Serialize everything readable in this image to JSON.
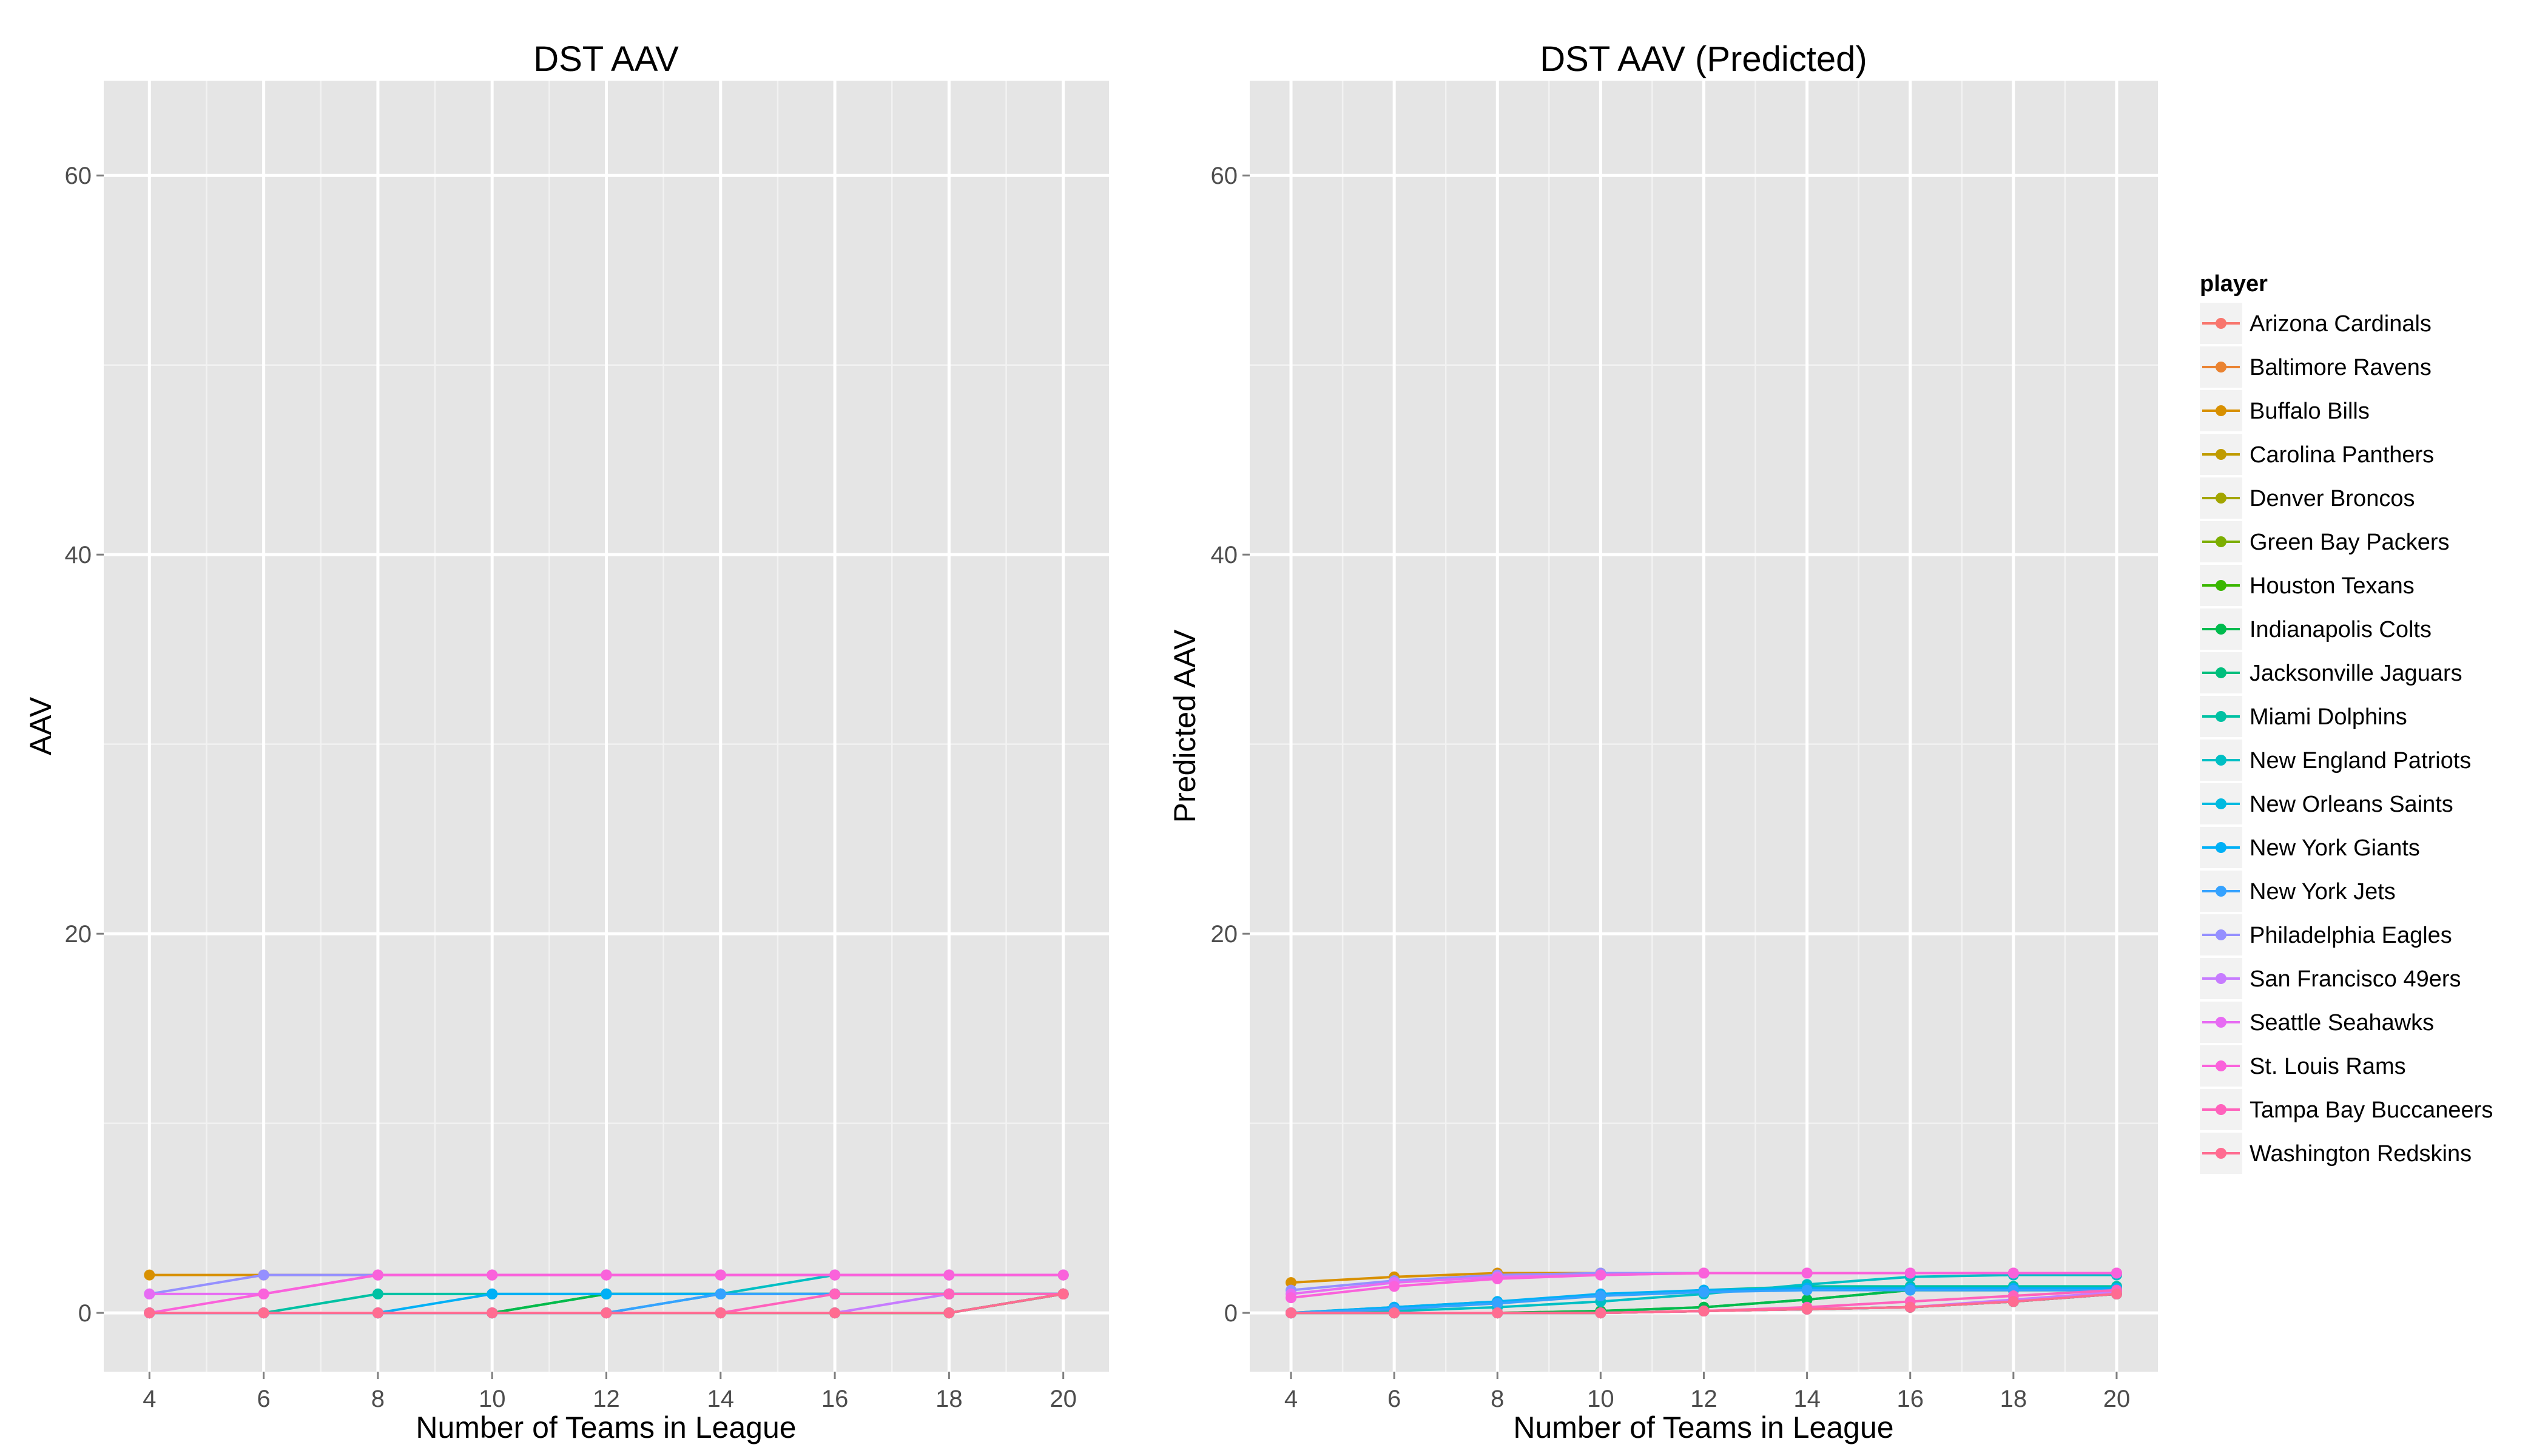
{
  "chart_data": [
    {
      "type": "line",
      "title": "DST AAV",
      "xlabel": "Number of Teams in League",
      "ylabel": "AAV",
      "xlim": [
        3.2,
        20.8
      ],
      "ylim": [
        -3.1,
        65
      ],
      "x_ticks": [
        4,
        6,
        8,
        10,
        12,
        14,
        16,
        18,
        20
      ],
      "y_ticks": [
        0,
        20,
        40,
        60
      ],
      "grid": true,
      "x": [
        4,
        6,
        8,
        10,
        12,
        14,
        16,
        18,
        20
      ],
      "series": [
        {
          "name": "Arizona Cardinals",
          "values": [
            0,
            0,
            0,
            0,
            0,
            0,
            0,
            0,
            1
          ]
        },
        {
          "name": "Baltimore Ravens",
          "values": [
            0,
            0,
            0,
            0,
            0,
            0,
            0,
            0,
            1
          ]
        },
        {
          "name": "Buffalo Bills",
          "values": [
            2,
            2,
            2,
            2,
            2,
            2,
            2,
            2,
            2
          ]
        },
        {
          "name": "Carolina Panthers",
          "values": [
            0,
            0,
            0,
            0,
            0,
            0,
            0,
            0,
            1
          ]
        },
        {
          "name": "Denver Broncos",
          "values": [
            0,
            0,
            0,
            0,
            0,
            0,
            0,
            0,
            1
          ]
        },
        {
          "name": "Green Bay Packers",
          "values": [
            0,
            0,
            0,
            0,
            0,
            0,
            0,
            0,
            1
          ]
        },
        {
          "name": "Houston Texans",
          "values": [
            0,
            0,
            0,
            0,
            1,
            1,
            1,
            1,
            1
          ]
        },
        {
          "name": "Indianapolis Colts",
          "values": [
            0,
            0,
            0,
            0,
            1,
            1,
            1,
            1,
            1
          ]
        },
        {
          "name": "Jacksonville Jaguars",
          "values": [
            0,
            0,
            0,
            0,
            0,
            0,
            0,
            0,
            1
          ]
        },
        {
          "name": "Miami Dolphins",
          "values": [
            0,
            0,
            1,
            1,
            1,
            1,
            1,
            1,
            1
          ]
        },
        {
          "name": "New England Patriots",
          "values": [
            0,
            0,
            0,
            0,
            0,
            1,
            2,
            2,
            2
          ]
        },
        {
          "name": "New Orleans Saints",
          "values": [
            0,
            0,
            0,
            0,
            0,
            0,
            0,
            0,
            1
          ]
        },
        {
          "name": "New York Giants",
          "values": [
            0,
            0,
            0,
            1,
            1,
            1,
            1,
            1,
            1
          ]
        },
        {
          "name": "New York Jets",
          "values": [
            0,
            0,
            0,
            0,
            0,
            1,
            1,
            1,
            1
          ]
        },
        {
          "name": "Philadelphia Eagles",
          "values": [
            1,
            2,
            2,
            2,
            2,
            2,
            2,
            2,
            2
          ]
        },
        {
          "name": "San Francisco 49ers",
          "values": [
            0,
            0,
            0,
            0,
            0,
            0,
            0,
            1,
            1
          ]
        },
        {
          "name": "Seattle Seahawks",
          "values": [
            1,
            1,
            2,
            2,
            2,
            2,
            2,
            2,
            2
          ]
        },
        {
          "name": "St. Louis Rams",
          "values": [
            0,
            1,
            2,
            2,
            2,
            2,
            2,
            2,
            2
          ]
        },
        {
          "name": "Tampa Bay Buccaneers",
          "values": [
            0,
            0,
            0,
            0,
            0,
            0,
            1,
            1,
            1
          ]
        },
        {
          "name": "Washington Redskins",
          "values": [
            0,
            0,
            0,
            0,
            0,
            0,
            0,
            0,
            1
          ]
        }
      ]
    },
    {
      "type": "line",
      "title": "DST AAV (Predicted)",
      "xlabel": "Number of Teams in League",
      "ylabel": "Predicted AAV",
      "xlim": [
        3.2,
        20.8
      ],
      "ylim": [
        -3.1,
        65
      ],
      "x_ticks": [
        4,
        6,
        8,
        10,
        12,
        14,
        16,
        18,
        20
      ],
      "y_ticks": [
        0,
        20,
        40,
        60
      ],
      "grid": true,
      "x": [
        4,
        6,
        8,
        10,
        12,
        14,
        16,
        18,
        20
      ],
      "series": [
        {
          "name": "Arizona Cardinals",
          "values": [
            0.0,
            0.0,
            0.0,
            0.0,
            0.1,
            0.2,
            0.3,
            0.6,
            1.0
          ]
        },
        {
          "name": "Baltimore Ravens",
          "values": [
            0.0,
            0.0,
            0.0,
            0.0,
            0.1,
            0.2,
            0.3,
            0.6,
            1.0
          ]
        },
        {
          "name": "Buffalo Bills",
          "values": [
            1.6,
            1.9,
            2.1,
            2.1,
            2.1,
            2.1,
            2.1,
            2.1,
            2.1
          ]
        },
        {
          "name": "Carolina Panthers",
          "values": [
            0.0,
            0.0,
            0.0,
            0.0,
            0.1,
            0.2,
            0.3,
            0.6,
            1.0
          ]
        },
        {
          "name": "Denver Broncos",
          "values": [
            0.0,
            0.0,
            0.0,
            0.0,
            0.1,
            0.2,
            0.3,
            0.6,
            1.0
          ]
        },
        {
          "name": "Green Bay Packers",
          "values": [
            0.0,
            0.0,
            0.0,
            0.0,
            0.1,
            0.2,
            0.3,
            0.6,
            1.0
          ]
        },
        {
          "name": "Houston Texans",
          "values": [
            0.0,
            0.0,
            0.0,
            0.1,
            0.3,
            0.7,
            1.2,
            1.2,
            1.2
          ]
        },
        {
          "name": "Indianapolis Colts",
          "values": [
            0.0,
            0.0,
            0.0,
            0.1,
            0.3,
            0.7,
            1.2,
            1.2,
            1.2
          ]
        },
        {
          "name": "Jacksonville Jaguars",
          "values": [
            0.0,
            0.0,
            0.0,
            0.0,
            0.1,
            0.2,
            0.3,
            0.6,
            1.0
          ]
        },
        {
          "name": "Miami Dolphins",
          "values": [
            0.0,
            0.3,
            0.6,
            0.9,
            1.2,
            1.4,
            1.4,
            1.4,
            1.4
          ]
        },
        {
          "name": "New England Patriots",
          "values": [
            0.0,
            0.1,
            0.3,
            0.6,
            1.0,
            1.5,
            1.9,
            2.0,
            2.0
          ]
        },
        {
          "name": "New Orleans Saints",
          "values": [
            0.0,
            0.0,
            0.0,
            0.0,
            0.1,
            0.2,
            0.3,
            0.6,
            1.0
          ]
        },
        {
          "name": "New York Giants",
          "values": [
            0.0,
            0.3,
            0.6,
            1.0,
            1.2,
            1.3,
            1.3,
            1.3,
            1.3
          ]
        },
        {
          "name": "New York Jets",
          "values": [
            0.0,
            0.2,
            0.5,
            0.9,
            1.1,
            1.2,
            1.2,
            1.2,
            1.2
          ]
        },
        {
          "name": "Philadelphia Eagles",
          "values": [
            1.2,
            1.7,
            2.0,
            2.1,
            2.1,
            2.1,
            2.1,
            2.1,
            2.1
          ]
        },
        {
          "name": "San Francisco 49ers",
          "values": [
            0.0,
            0.0,
            0.0,
            0.0,
            0.1,
            0.2,
            0.3,
            0.7,
            1.1
          ]
        },
        {
          "name": "Seattle Seahawks",
          "values": [
            1.0,
            1.6,
            1.9,
            2.0,
            2.1,
            2.1,
            2.1,
            2.1,
            2.1
          ]
        },
        {
          "name": "St. Louis Rams",
          "values": [
            0.8,
            1.4,
            1.8,
            2.0,
            2.1,
            2.1,
            2.1,
            2.1,
            2.1
          ]
        },
        {
          "name": "Tampa Bay Buccaneers",
          "values": [
            0.0,
            0.0,
            0.0,
            0.0,
            0.1,
            0.3,
            0.6,
            0.9,
            1.2
          ]
        },
        {
          "name": "Washington Redskins",
          "values": [
            0.0,
            0.0,
            0.0,
            0.0,
            0.1,
            0.2,
            0.3,
            0.6,
            1.0
          ]
        }
      ]
    }
  ],
  "legend": {
    "title": "player",
    "entries": [
      {
        "label": "Arizona Cardinals",
        "color": "#F8766D"
      },
      {
        "label": "Baltimore Ravens",
        "color": "#EA8331"
      },
      {
        "label": "Buffalo Bills",
        "color": "#D89000"
      },
      {
        "label": "Carolina Panthers",
        "color": "#C09B00"
      },
      {
        "label": "Denver Broncos",
        "color": "#A3A500"
      },
      {
        "label": "Green Bay Packers",
        "color": "#7CAE00"
      },
      {
        "label": "Houston Texans",
        "color": "#39B600"
      },
      {
        "label": "Indianapolis Colts",
        "color": "#00BB4E"
      },
      {
        "label": "Jacksonville Jaguars",
        "color": "#00BF7D"
      },
      {
        "label": "Miami Dolphins",
        "color": "#00C1A3"
      },
      {
        "label": "New England Patriots",
        "color": "#00BFC4"
      },
      {
        "label": "New Orleans Saints",
        "color": "#00BAE0"
      },
      {
        "label": "New York Giants",
        "color": "#00B0F6"
      },
      {
        "label": "New York Jets",
        "color": "#35A2FF"
      },
      {
        "label": "Philadelphia Eagles",
        "color": "#9590FF"
      },
      {
        "label": "San Francisco 49ers",
        "color": "#C77CFF"
      },
      {
        "label": "Seattle Seahawks",
        "color": "#E76BF3"
      },
      {
        "label": "St. Louis Rams",
        "color": "#FA62DB"
      },
      {
        "label": "Tampa Bay Buccaneers",
        "color": "#FF62BC"
      },
      {
        "label": "Washington Redskins",
        "color": "#FF6C91"
      }
    ]
  },
  "colors": {
    "panel_background": "#E5E5E5",
    "grid_major": "#FFFFFF",
    "grid_minor": "#F2F2F2",
    "legend_key_background": "#F2F2F2"
  }
}
